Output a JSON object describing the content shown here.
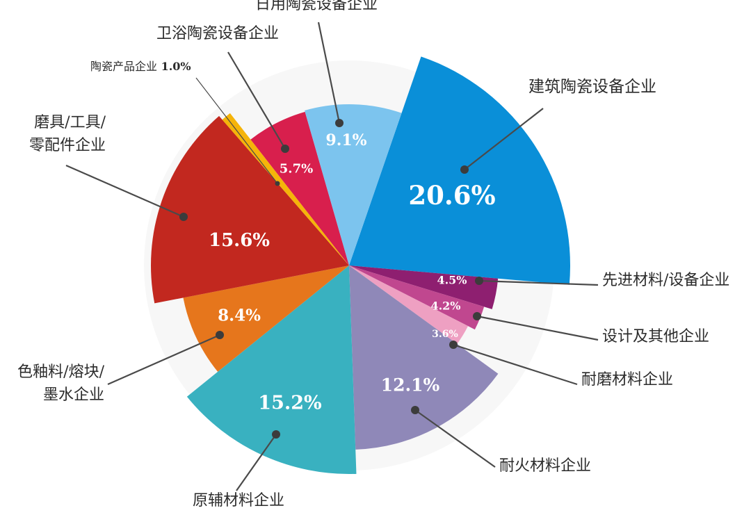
{
  "chart_data": {
    "type": "pie",
    "variant": "radius-varied pie with leader-line callouts",
    "title": "",
    "unit": "%",
    "slices": [
      {
        "label": "建筑陶瓷设备企业",
        "value": 20.6,
        "display": "20.6%",
        "color": "#0a8fd8"
      },
      {
        "label": "先进材料/设备企业",
        "value": 4.5,
        "display": "4.5%",
        "color": "#8e1f70"
      },
      {
        "label": "设计及其他企业",
        "value": 4.2,
        "display": "4.2%",
        "color": "#c0478f"
      },
      {
        "label": "耐磨材料企业",
        "value": 3.6,
        "display": "3.6%",
        "color": "#eea0c2"
      },
      {
        "label": "耐火材料企业",
        "value": 12.1,
        "display": "12.1%",
        "color": "#8f88b8"
      },
      {
        "label": "原辅材料企业",
        "value": 15.2,
        "display": "15.2%",
        "color": "#39b1c0"
      },
      {
        "label": "色釉料/熔块/墨水企业",
        "label_lines": [
          "色釉料/熔块/",
          "墨水企业"
        ],
        "value": 8.4,
        "display": "8.4%",
        "color": "#e6761c"
      },
      {
        "label": "磨具/工具/零配件企业",
        "label_lines": [
          "磨具/工具/",
          "零配件企业"
        ],
        "value": 15.6,
        "display": "15.6%",
        "color": "#c2281f"
      },
      {
        "label": "陶瓷产品企业",
        "value": 1.0,
        "display": "1.0%",
        "color": "#f5b40a"
      },
      {
        "label": "卫浴陶瓷设备企业",
        "value": 5.7,
        "display": "5.7%",
        "color": "#d81f4d"
      },
      {
        "label": "日用陶瓷设备企业",
        "value": 9.1,
        "display": "9.1%",
        "color": "#7cc4ee"
      }
    ],
    "legend": "none",
    "grid": false
  }
}
